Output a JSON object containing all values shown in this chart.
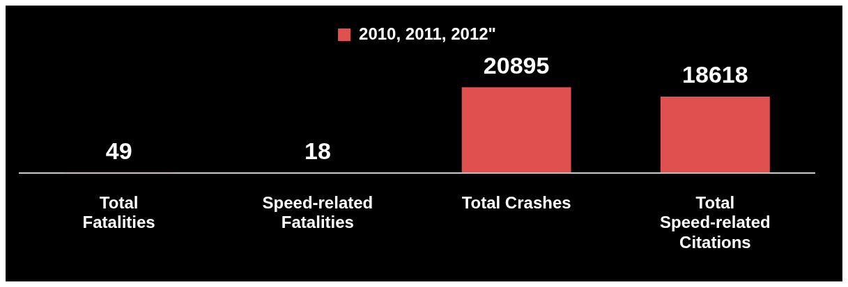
{
  "chart_data": {
    "type": "bar",
    "categories": [
      "Total Fatalities",
      "Speed-related Fatalities",
      "Total Crashes",
      "Total Speed-related Citations"
    ],
    "series": [
      {
        "name": "2010, 2011, 2012\"",
        "color": "#e0504f",
        "values": [
          49,
          18,
          20895,
          18618
        ]
      }
    ],
    "data_labels": true,
    "legend": "top",
    "grid": false
  }
}
